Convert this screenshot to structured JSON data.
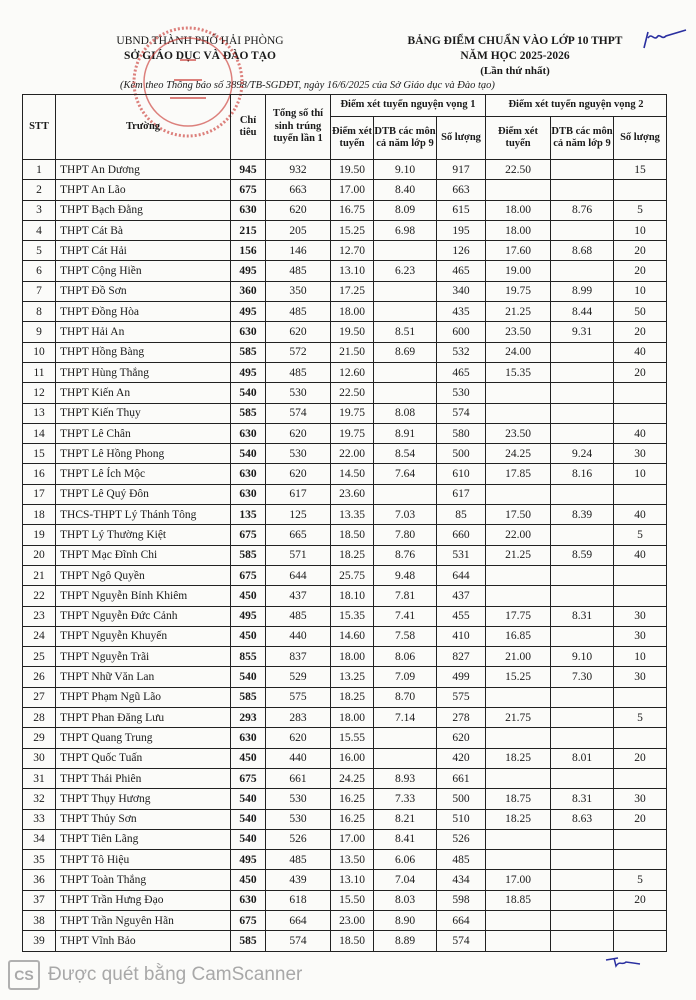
{
  "header_left": {
    "line1": "UBND THÀNH PHỐ HẢI PHÒNG",
    "line2": "SỞ GIÁO DỤC VÀ ĐÀO TẠO"
  },
  "header_right": {
    "line1": "BẢNG ĐIỂM CHUẨN VÀO LỚP 10 THPT",
    "line2": "NĂM HỌC 2025-2026",
    "line3": "(Lần thứ nhất)"
  },
  "reference": "(Kèm theo Thông báo số 3898/TB-SGDĐT, ngày 16/6/2025 của Sở Giáo dục và Đào tạo)",
  "stamp": {
    "text_top": "SỞ",
    "text_mid": "GIÁO DỤC",
    "text_bottom": "VÀ ĐÀO TẠO",
    "color": "#c8302a"
  },
  "table": {
    "headers": {
      "stt": "STT",
      "truong": "Trường",
      "chi_tieu": "Chỉ tiêu",
      "tong": "Tổng số thí sinh trúng tuyển lần 1",
      "nv1": "Điểm xét tuyển nguyện vọng 1",
      "nv2": "Điểm xét tuyển nguyện vọng 2",
      "diem": "Điểm xét tuyển",
      "dtb": "DTB các môn cả năm lớp 9",
      "so_luong": "Số lượng"
    },
    "rows": [
      [
        "1",
        "THPT An Dương",
        "945",
        "932",
        "19.50",
        "9.10",
        "917",
        "22.50",
        "",
        "15"
      ],
      [
        "2",
        "THPT An Lão",
        "675",
        "663",
        "17.00",
        "8.40",
        "663",
        "",
        "",
        ""
      ],
      [
        "3",
        "THPT Bạch Đằng",
        "630",
        "620",
        "16.75",
        "8.09",
        "615",
        "18.00",
        "8.76",
        "5"
      ],
      [
        "4",
        "THPT Cát Bà",
        "215",
        "205",
        "15.25",
        "6.98",
        "195",
        "18.00",
        "",
        "10"
      ],
      [
        "5",
        "THPT Cát Hải",
        "156",
        "146",
        "12.70",
        "",
        "126",
        "17.60",
        "8.68",
        "20"
      ],
      [
        "6",
        "THPT Cộng Hiền",
        "495",
        "485",
        "13.10",
        "6.23",
        "465",
        "19.00",
        "",
        "20"
      ],
      [
        "7",
        "THPT Đồ Sơn",
        "360",
        "350",
        "17.25",
        "",
        "340",
        "19.75",
        "8.99",
        "10"
      ],
      [
        "8",
        "THPT Đồng Hòa",
        "495",
        "485",
        "18.00",
        "",
        "435",
        "21.25",
        "8.44",
        "50"
      ],
      [
        "9",
        "THPT Hải An",
        "630",
        "620",
        "19.50",
        "8.51",
        "600",
        "23.50",
        "9.31",
        "20"
      ],
      [
        "10",
        "THPT Hồng Bàng",
        "585",
        "572",
        "21.50",
        "8.69",
        "532",
        "24.00",
        "",
        "40"
      ],
      [
        "11",
        "THPT Hùng Thắng",
        "495",
        "485",
        "12.60",
        "",
        "465",
        "15.35",
        "",
        "20"
      ],
      [
        "12",
        "THPT Kiến An",
        "540",
        "530",
        "22.50",
        "",
        "530",
        "",
        "",
        ""
      ],
      [
        "13",
        "THPT Kiến Thụy",
        "585",
        "574",
        "19.75",
        "8.08",
        "574",
        "",
        "",
        ""
      ],
      [
        "14",
        "THPT Lê Chân",
        "630",
        "620",
        "19.75",
        "8.91",
        "580",
        "23.50",
        "",
        "40"
      ],
      [
        "15",
        "THPT Lê Hồng Phong",
        "540",
        "530",
        "22.00",
        "8.54",
        "500",
        "24.25",
        "9.24",
        "30"
      ],
      [
        "16",
        "THPT Lê Ích Mộc",
        "630",
        "620",
        "14.50",
        "7.64",
        "610",
        "17.85",
        "8.16",
        "10"
      ],
      [
        "17",
        "THPT Lê Quý Đôn",
        "630",
        "617",
        "23.60",
        "",
        "617",
        "",
        "",
        ""
      ],
      [
        "18",
        "THCS-THPT Lý Thánh Tông",
        "135",
        "125",
        "13.35",
        "7.03",
        "85",
        "17.50",
        "8.39",
        "40"
      ],
      [
        "19",
        "THPT Lý Thường Kiệt",
        "675",
        "665",
        "18.50",
        "7.80",
        "660",
        "22.00",
        "",
        "5"
      ],
      [
        "20",
        "THPT Mạc Đĩnh Chi",
        "585",
        "571",
        "18.25",
        "8.76",
        "531",
        "21.25",
        "8.59",
        "40"
      ],
      [
        "21",
        "THPT Ngô Quyền",
        "675",
        "644",
        "25.75",
        "9.48",
        "644",
        "",
        "",
        ""
      ],
      [
        "22",
        "THPT Nguyễn Bỉnh Khiêm",
        "450",
        "437",
        "18.10",
        "7.81",
        "437",
        "",
        "",
        ""
      ],
      [
        "23",
        "THPT Nguyễn Đức Cảnh",
        "495",
        "485",
        "15.35",
        "7.41",
        "455",
        "17.75",
        "8.31",
        "30"
      ],
      [
        "24",
        "THPT Nguyễn Khuyến",
        "450",
        "440",
        "14.60",
        "7.58",
        "410",
        "16.85",
        "",
        "30"
      ],
      [
        "25",
        "THPT Nguyễn Trãi",
        "855",
        "837",
        "18.00",
        "8.06",
        "827",
        "21.00",
        "9.10",
        "10"
      ],
      [
        "26",
        "THPT Nhữ Văn Lan",
        "540",
        "529",
        "13.25",
        "7.09",
        "499",
        "15.25",
        "7.30",
        "30"
      ],
      [
        "27",
        "THPT Phạm Ngũ Lão",
        "585",
        "575",
        "18.25",
        "8.70",
        "575",
        "",
        "",
        ""
      ],
      [
        "28",
        "THPT Phan Đăng Lưu",
        "293",
        "283",
        "18.00",
        "7.14",
        "278",
        "21.75",
        "",
        "5"
      ],
      [
        "29",
        "THPT Quang Trung",
        "630",
        "620",
        "15.55",
        "",
        "620",
        "",
        "",
        ""
      ],
      [
        "30",
        "THPT Quốc Tuấn",
        "450",
        "440",
        "16.00",
        "",
        "420",
        "18.25",
        "8.01",
        "20"
      ],
      [
        "31",
        "THPT Thái Phiên",
        "675",
        "661",
        "24.25",
        "8.93",
        "661",
        "",
        "",
        ""
      ],
      [
        "32",
        "THPT Thụy Hương",
        "540",
        "530",
        "16.25",
        "7.33",
        "500",
        "18.75",
        "8.31",
        "30"
      ],
      [
        "33",
        "THPT Thủy Sơn",
        "540",
        "530",
        "16.25",
        "8.21",
        "510",
        "18.25",
        "8.63",
        "20"
      ],
      [
        "34",
        "THPT Tiên Lãng",
        "540",
        "526",
        "17.00",
        "8.41",
        "526",
        "",
        "",
        ""
      ],
      [
        "35",
        "THPT Tô Hiệu",
        "495",
        "485",
        "13.50",
        "6.06",
        "485",
        "",
        "",
        ""
      ],
      [
        "36",
        "THPT Toàn Thắng",
        "450",
        "439",
        "13.10",
        "7.04",
        "434",
        "17.00",
        "",
        "5"
      ],
      [
        "37",
        "THPT Trần Hưng Đạo",
        "630",
        "618",
        "15.50",
        "8.03",
        "598",
        "18.85",
        "",
        "20"
      ],
      [
        "38",
        "THPT Trần Nguyên Hãn",
        "675",
        "664",
        "23.00",
        "8.90",
        "664",
        "",
        "",
        ""
      ],
      [
        "39",
        "THPT Vĩnh Bảo",
        "585",
        "574",
        "18.50",
        "8.89",
        "574",
        "",
        "",
        ""
      ]
    ]
  },
  "watermark": {
    "logo": "CS",
    "text": "Được quét bằng CamScanner"
  },
  "ink_color": "#2a2fa0"
}
